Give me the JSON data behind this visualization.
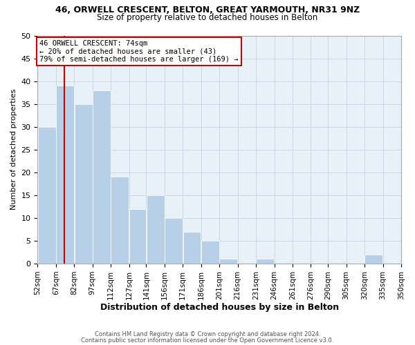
{
  "title": "46, ORWELL CRESCENT, BELTON, GREAT YARMOUTH, NR31 9NZ",
  "subtitle": "Size of property relative to detached houses in Belton",
  "xlabel": "Distribution of detached houses by size in Belton",
  "ylabel": "Number of detached properties",
  "bar_left_edges": [
    52,
    67,
    82,
    97,
    112,
    127,
    141,
    156,
    171,
    186,
    201,
    216,
    231,
    246,
    261,
    276,
    290,
    305,
    320,
    335
  ],
  "bar_widths": [
    15,
    15,
    15,
    15,
    15,
    14,
    15,
    15,
    15,
    15,
    15,
    15,
    15,
    15,
    15,
    14,
    15,
    15,
    15,
    15
  ],
  "bar_heights": [
    30,
    39,
    35,
    38,
    19,
    12,
    15,
    10,
    7,
    5,
    1,
    0,
    1,
    0,
    0,
    0,
    0,
    0,
    2,
    0
  ],
  "tick_labels": [
    "52sqm",
    "67sqm",
    "82sqm",
    "97sqm",
    "112sqm",
    "127sqm",
    "141sqm",
    "156sqm",
    "171sqm",
    "186sqm",
    "201sqm",
    "216sqm",
    "231sqm",
    "246sqm",
    "261sqm",
    "276sqm",
    "290sqm",
    "305sqm",
    "320sqm",
    "335sqm",
    "350sqm"
  ],
  "bar_color": "#b8cfe8",
  "bar_edge_color": "#ffffff",
  "grid_color": "#c8d8e8",
  "bg_color": "#e8f0f8",
  "property_line_x": 74,
  "annotation_title": "46 ORWELL CRESCENT: 74sqm",
  "annotation_line1": "← 20% of detached houses are smaller (43)",
  "annotation_line2": "79% of semi-detached houses are larger (169) →",
  "annotation_box_color": "#ffffff",
  "annotation_box_edge": "#cc0000",
  "property_line_color": "#cc0000",
  "ylim": [
    0,
    50
  ],
  "yticks": [
    0,
    5,
    10,
    15,
    20,
    25,
    30,
    35,
    40,
    45,
    50
  ],
  "footer1": "Contains HM Land Registry data © Crown copyright and database right 2024.",
  "footer2": "Contains public sector information licensed under the Open Government Licence v3.0."
}
